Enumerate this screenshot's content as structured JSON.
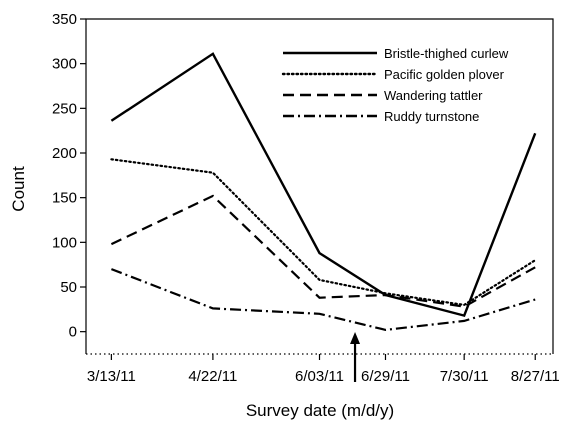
{
  "chart_data": {
    "type": "line",
    "title": "",
    "xlabel": "Survey date (m/d/y)",
    "ylabel": "Count",
    "x": [
      "3/13/11",
      "4/22/11",
      "6/03/11",
      "6/29/11",
      "7/30/11",
      "8/27/11"
    ],
    "ylim": [
      -25,
      350
    ],
    "yticks": [
      0,
      50,
      100,
      150,
      200,
      250,
      300,
      350
    ],
    "grid": false,
    "legend_position": "top-right",
    "series": [
      {
        "name": "Bristle-thighed curlew",
        "values": [
          236,
          311,
          88,
          41,
          18,
          222
        ],
        "style": "solid"
      },
      {
        "name": "Pacific golden plover",
        "values": [
          193,
          178,
          58,
          43,
          30,
          80
        ],
        "style": "dotted"
      },
      {
        "name": "Wandering tattler",
        "values": [
          98,
          152,
          38,
          41,
          28,
          72
        ],
        "style": "dashed"
      },
      {
        "name": "Ruddy turnstone",
        "values": [
          70,
          26,
          20,
          2,
          12,
          36
        ],
        "style": "dashdot"
      }
    ],
    "annotation": {
      "type": "arrow",
      "x": "6/17/11"
    }
  }
}
